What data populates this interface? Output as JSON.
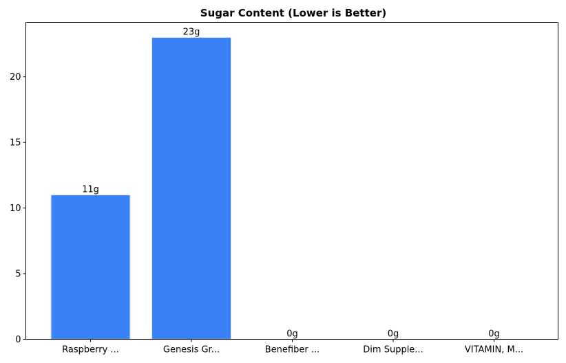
{
  "chart_data": {
    "type": "bar",
    "title": "Sugar Content (Lower is Better)",
    "xlabel": "",
    "ylabel": "",
    "categories": [
      "Raspberry ...",
      "Genesis Gr...",
      "Benefiber ...",
      "Dim Supple...",
      "VITAMIN, M..."
    ],
    "values": [
      11,
      23,
      0,
      0,
      0
    ],
    "value_labels": [
      "11g",
      "23g",
      "0g",
      "0g",
      "0g"
    ],
    "ylim": [
      0,
      24.15
    ],
    "yticks": [
      0,
      5,
      10,
      15,
      20
    ],
    "ytick_labels": [
      "0",
      "5",
      "10",
      "15",
      "20"
    ],
    "grid": false,
    "bar_color": "#3b82f6"
  }
}
